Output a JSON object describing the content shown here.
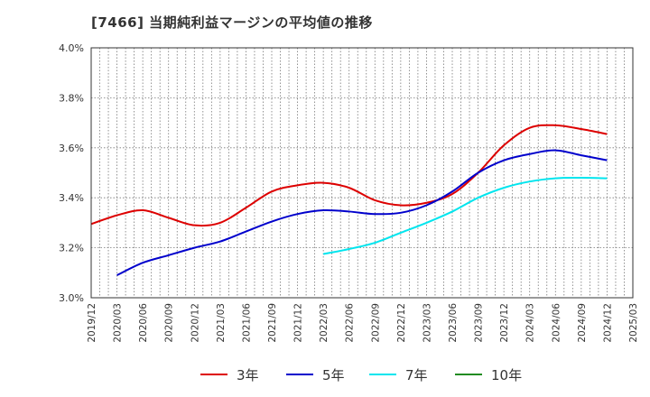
{
  "title": "[7466]  当期純利益マージンの平均値の推移",
  "chart_data": {
    "type": "line",
    "title": "[7466]  当期純利益マージンの平均値の推移",
    "xlabel": "",
    "ylabel": "",
    "ylim": [
      3.0,
      4.0
    ],
    "y_ticks": [
      "3.0%",
      "3.2%",
      "3.4%",
      "3.6%",
      "3.8%",
      "4.0%"
    ],
    "x_ticks": [
      "2019/12",
      "2020/03",
      "2020/06",
      "2020/09",
      "2020/12",
      "2021/03",
      "2021/06",
      "2021/09",
      "2021/12",
      "2022/03",
      "2022/06",
      "2022/09",
      "2022/12",
      "2023/03",
      "2023/06",
      "2023/09",
      "2023/12",
      "2024/03",
      "2024/06",
      "2024/09",
      "2024/12",
      "2025/03"
    ],
    "grid": true,
    "legend_position": "bottom",
    "series": [
      {
        "name": "3年",
        "color": "#dd0000",
        "points": [
          [
            "2019/12",
            3.295
          ],
          [
            "2020/03",
            3.33
          ],
          [
            "2020/06",
            3.35
          ],
          [
            "2020/09",
            3.32
          ],
          [
            "2020/12",
            3.29
          ],
          [
            "2021/03",
            3.3
          ],
          [
            "2021/06",
            3.36
          ],
          [
            "2021/09",
            3.425
          ],
          [
            "2021/12",
            3.45
          ],
          [
            "2022/03",
            3.46
          ],
          [
            "2022/06",
            3.44
          ],
          [
            "2022/09",
            3.39
          ],
          [
            "2022/12",
            3.37
          ],
          [
            "2023/03",
            3.38
          ],
          [
            "2023/06",
            3.415
          ],
          [
            "2023/09",
            3.5
          ],
          [
            "2023/12",
            3.61
          ],
          [
            "2024/03",
            3.68
          ],
          [
            "2024/06",
            3.69
          ],
          [
            "2024/09",
            3.675
          ],
          [
            "2024/12",
            3.655
          ]
        ]
      },
      {
        "name": "5年",
        "color": "#0000cc",
        "points": [
          [
            "2020/03",
            3.09
          ],
          [
            "2020/06",
            3.14
          ],
          [
            "2020/09",
            3.17
          ],
          [
            "2020/12",
            3.2
          ],
          [
            "2021/03",
            3.225
          ],
          [
            "2021/06",
            3.265
          ],
          [
            "2021/09",
            3.305
          ],
          [
            "2021/12",
            3.335
          ],
          [
            "2022/03",
            3.35
          ],
          [
            "2022/06",
            3.345
          ],
          [
            "2022/09",
            3.335
          ],
          [
            "2022/12",
            3.34
          ],
          [
            "2023/03",
            3.37
          ],
          [
            "2023/06",
            3.425
          ],
          [
            "2023/09",
            3.5
          ],
          [
            "2023/12",
            3.55
          ],
          [
            "2024/03",
            3.575
          ],
          [
            "2024/06",
            3.59
          ],
          [
            "2024/09",
            3.57
          ],
          [
            "2024/12",
            3.55
          ]
        ]
      },
      {
        "name": "7年",
        "color": "#00e5ee",
        "points": [
          [
            "2022/03",
            3.175
          ],
          [
            "2022/06",
            3.195
          ],
          [
            "2022/09",
            3.22
          ],
          [
            "2022/12",
            3.26
          ],
          [
            "2023/03",
            3.3
          ],
          [
            "2023/06",
            3.345
          ],
          [
            "2023/09",
            3.4
          ],
          [
            "2023/12",
            3.44
          ],
          [
            "2024/03",
            3.465
          ],
          [
            "2024/06",
            3.478
          ],
          [
            "2024/09",
            3.48
          ],
          [
            "2024/12",
            3.478
          ]
        ]
      },
      {
        "name": "10年",
        "color": "#228b22",
        "points": []
      }
    ]
  }
}
